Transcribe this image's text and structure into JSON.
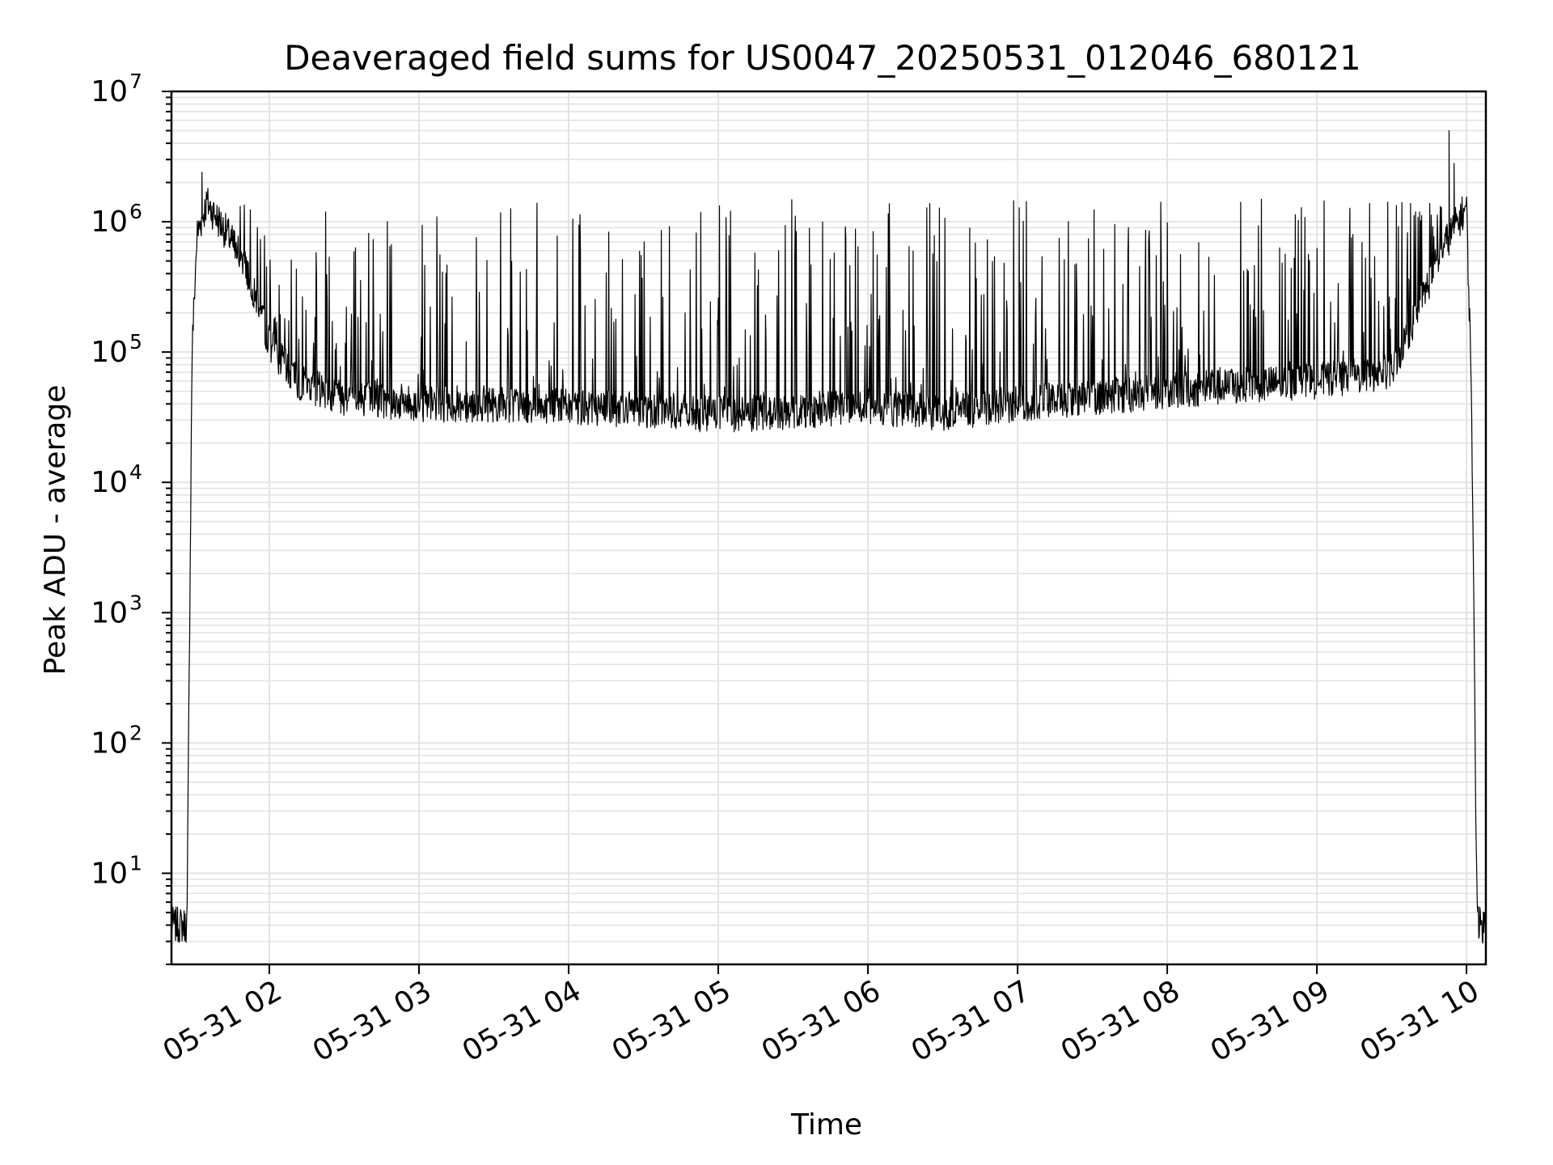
{
  "chart_data": {
    "type": "line",
    "title": "Deaveraged field sums for US0047_20250531_012046_680121",
    "xlabel": "Time",
    "ylabel": "Peak ADU - average",
    "yscale": "log",
    "ylim": [
      2,
      10000000
    ],
    "xlim": [
      "2025-05-31 01:20:46",
      "2025-05-31 10:07:45"
    ],
    "grid": true,
    "line_color": "#000000",
    "x_ticks": [
      "05-31 02",
      "05-31 03",
      "05-31 04",
      "05-31 05",
      "05-31 06",
      "05-31 07",
      "05-31 08",
      "05-31 09",
      "05-31 10"
    ],
    "y_ticks": [
      {
        "base": "10",
        "exp": "1",
        "value": 10
      },
      {
        "base": "10",
        "exp": "2",
        "value": 100
      },
      {
        "base": "10",
        "exp": "3",
        "value": 1000
      },
      {
        "base": "10",
        "exp": "4",
        "value": 10000
      },
      {
        "base": "10",
        "exp": "5",
        "value": 100000
      },
      {
        "base": "10",
        "exp": "6",
        "value": 1000000
      },
      {
        "base": "10",
        "exp": "7",
        "value": 10000000
      }
    ],
    "series": [
      {
        "baseline": [
          [
            "2025-05-31 01:20:46",
            4
          ],
          [
            "2025-05-31 01:27:00",
            4
          ],
          [
            "2025-05-31 01:29:00",
            100000
          ],
          [
            "2025-05-31 01:31:00",
            800000
          ],
          [
            "2025-05-31 01:35:00",
            1400000
          ],
          [
            "2025-05-31 01:40:00",
            1000000
          ],
          [
            "2025-05-31 01:50:00",
            500000
          ],
          [
            "2025-05-31 02:00:00",
            120000
          ],
          [
            "2025-05-31 02:10:00",
            60000
          ],
          [
            "2025-05-31 02:30:00",
            45000
          ],
          [
            "2025-05-31 03:00:00",
            40000
          ],
          [
            "2025-05-31 03:30:00",
            40000
          ],
          [
            "2025-05-31 04:00:00",
            38000
          ],
          [
            "2025-05-31 04:30:00",
            36000
          ],
          [
            "2025-05-31 05:00:00",
            33000
          ],
          [
            "2025-05-31 05:30:00",
            35000
          ],
          [
            "2025-05-31 06:00:00",
            38000
          ],
          [
            "2025-05-31 06:30:00",
            34000
          ],
          [
            "2025-05-31 07:00:00",
            40000
          ],
          [
            "2025-05-31 07:30:00",
            45000
          ],
          [
            "2025-05-31 08:00:00",
            50000
          ],
          [
            "2025-05-31 08:30:00",
            55000
          ],
          [
            "2025-05-31 09:00:00",
            60000
          ],
          [
            "2025-05-31 09:30:00",
            70000
          ],
          [
            "2025-05-31 09:40:00",
            200000
          ],
          [
            "2025-05-31 09:50:00",
            600000
          ],
          [
            "2025-05-31 09:55:00",
            900000
          ],
          [
            "2025-05-31 10:00:00",
            1300000
          ],
          [
            "2025-05-31 10:02:00",
            50000
          ],
          [
            "2025-05-31 10:04:00",
            10
          ],
          [
            "2025-05-31 10:05:00",
            4
          ],
          [
            "2025-05-31 10:07:45",
            4
          ]
        ],
        "spike_peak": 1500000,
        "max_spikes": [
          [
            "2025-05-31 01:33:00",
            2400000
          ],
          [
            "2025-05-31 09:53:00",
            5000000
          ],
          [
            "2025-05-31 09:55:00",
            2800000
          ]
        ]
      }
    ]
  }
}
